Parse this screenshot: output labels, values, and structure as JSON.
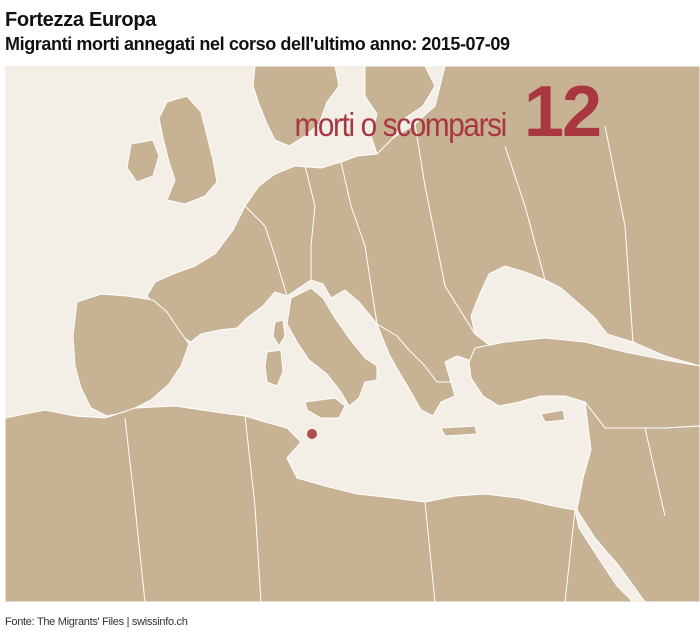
{
  "header": {
    "title": "Fortezza Europa",
    "subtitle": "Migranti morti annegati nel corso dell'ultimo anno: 2015-07-09"
  },
  "counter": {
    "label": "morti o scomparsi",
    "value": "12"
  },
  "map": {
    "land_color": "#c8b294",
    "sea_color": "#f3eee6",
    "border_color": "#ffffff",
    "marker_color": "#b24d4f",
    "incident_markers": [
      {
        "location": "Strait of Sicily, south of Malta"
      }
    ]
  },
  "footer": {
    "source": "Fonte: The Migrants' Files | swissinfo.ch"
  }
}
